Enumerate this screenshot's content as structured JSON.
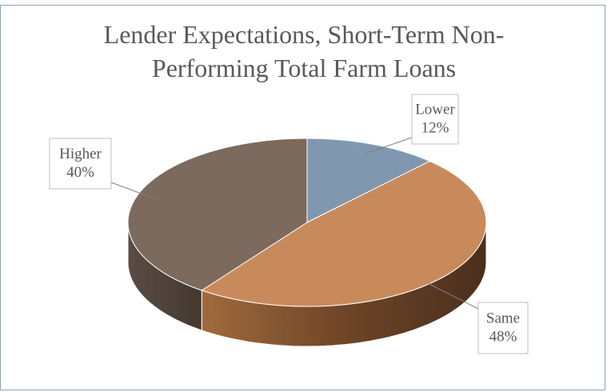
{
  "chart_data": {
    "type": "pie",
    "title": "Lender Expectations, Short-Term Non-Performing Total Farm Loans",
    "categories": [
      "Lower",
      "Same",
      "Higher"
    ],
    "values": [
      12,
      48,
      40
    ],
    "value_labels": [
      "12%",
      "48%",
      "40%"
    ],
    "colors": [
      "#7f98b0",
      "#c98a5b",
      "#7b6a5d"
    ]
  }
}
